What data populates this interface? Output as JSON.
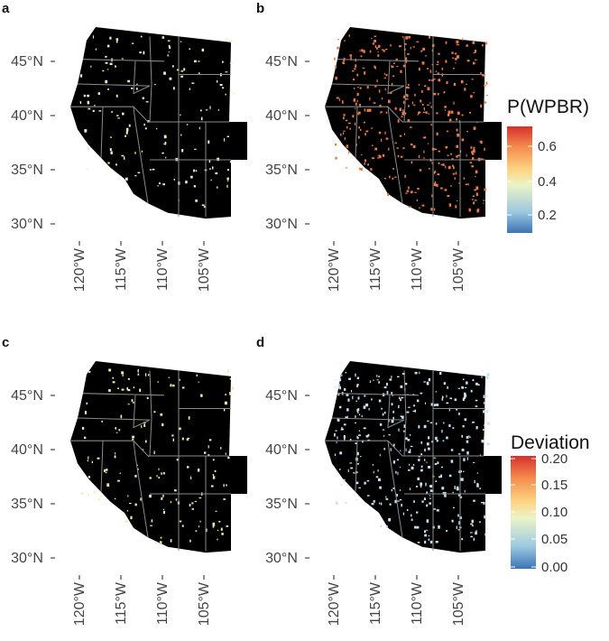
{
  "panels": [
    {
      "letter": "a",
      "fill_color": "#f2efb6",
      "speck_count": 150
    },
    {
      "letter": "b",
      "fill_color": "#ee7a42",
      "speck_count": 380
    },
    {
      "letter": "c",
      "fill_color": "#f5e9a6",
      "speck_count": 160
    },
    {
      "letter": "d",
      "fill_color": "#c4e3ee",
      "speck_count": 380
    }
  ],
  "latitude_labels": [
    "45°N",
    "40°N",
    "35°N",
    "30°N"
  ],
  "longitude_labels": [
    "120°W",
    "115°W",
    "110°W",
    "105°W"
  ],
  "legends": [
    {
      "title": "P(WPBR)",
      "ticks": [
        "0.6",
        "0.4",
        "0.2"
      ],
      "colors": [
        "#3b74b5",
        "#9cc9e0",
        "#ebf4c6",
        "#fdd382",
        "#f58e4e",
        "#d7302b"
      ]
    },
    {
      "title": "Deviation",
      "ticks": [
        "0.20",
        "0.15",
        "0.10",
        "0.05",
        "0.00"
      ],
      "colors": [
        "#3b74b5",
        "#9cc9e0",
        "#ebf4c6",
        "#fdd382",
        "#f58e4e",
        "#d7302b"
      ]
    }
  ]
}
